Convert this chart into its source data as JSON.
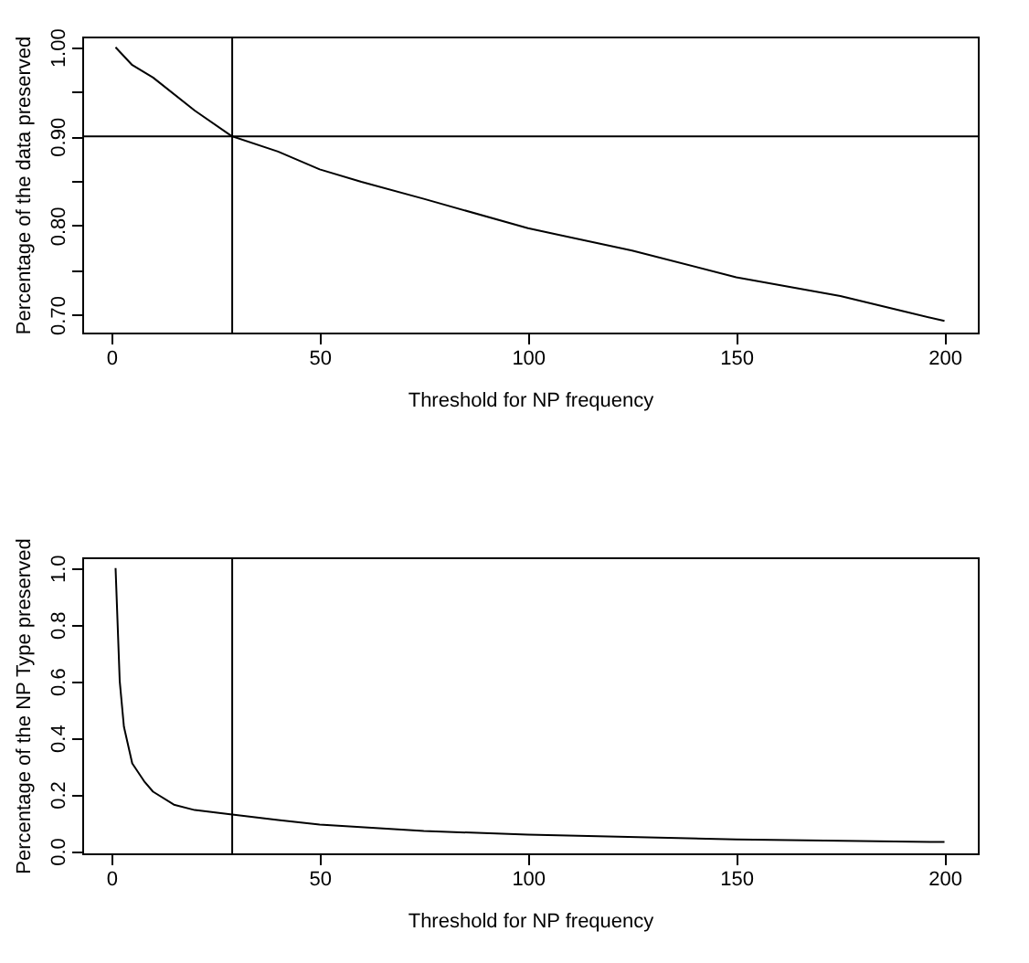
{
  "chart_data": [
    {
      "type": "line",
      "xlabel": "Threshold for NP frequency",
      "ylabel": "Percentage of the data preserved",
      "color": "#000000",
      "x": [
        1,
        3,
        5,
        10,
        20,
        29,
        40,
        50,
        60,
        75,
        100,
        125,
        150,
        175,
        190,
        200
      ],
      "values": [
        1.0,
        0.99,
        0.98,
        0.966,
        0.929,
        0.9,
        0.883,
        0.863,
        0.849,
        0.83,
        0.797,
        0.772,
        0.742,
        0.721,
        0.704,
        0.693
      ],
      "xlim": [
        -7,
        208
      ],
      "ylim": [
        0.68,
        1.012
      ],
      "xticks": [
        0,
        50,
        100,
        150,
        200
      ],
      "yticks": [
        {
          "value": 0.7,
          "label": "0.70"
        },
        {
          "value": 0.75,
          "label": null
        },
        {
          "value": 0.8,
          "label": "0.80"
        },
        {
          "value": 0.85,
          "label": null
        },
        {
          "value": 0.9,
          "label": "0.90"
        },
        {
          "value": 0.95,
          "label": null
        },
        {
          "value": 1.0,
          "label": "1.00"
        }
      ],
      "ref_lines": [
        {
          "axis": "x",
          "value": 29
        },
        {
          "axis": "y",
          "value": 0.9
        }
      ]
    },
    {
      "type": "line",
      "xlabel": "Threshold for NP frequency",
      "ylabel": "Percentage of the NP Type preserved",
      "color": "#000000",
      "x": [
        1,
        2,
        3,
        5,
        8,
        10,
        15,
        20,
        29,
        40,
        50,
        75,
        100,
        150,
        200
      ],
      "values": [
        1.0,
        0.6,
        0.44,
        0.31,
        0.244,
        0.21,
        0.164,
        0.145,
        0.129,
        0.11,
        0.094,
        0.071,
        0.058,
        0.041,
        0.032
      ],
      "xlim": [
        -7,
        208
      ],
      "ylim": [
        -0.008,
        1.038
      ],
      "xticks": [
        0,
        50,
        100,
        150,
        200
      ],
      "yticks": [
        {
          "value": 0,
          "label": "0.0"
        },
        {
          "value": 0.2,
          "label": "0.2"
        },
        {
          "value": 0.4,
          "label": "0.4"
        },
        {
          "value": 0.6,
          "label": "0.6"
        },
        {
          "value": 0.8,
          "label": "0.8"
        },
        {
          "value": 1,
          "label": "1.0"
        }
      ],
      "ref_lines": [
        {
          "axis": "x",
          "value": 29
        }
      ]
    }
  ]
}
